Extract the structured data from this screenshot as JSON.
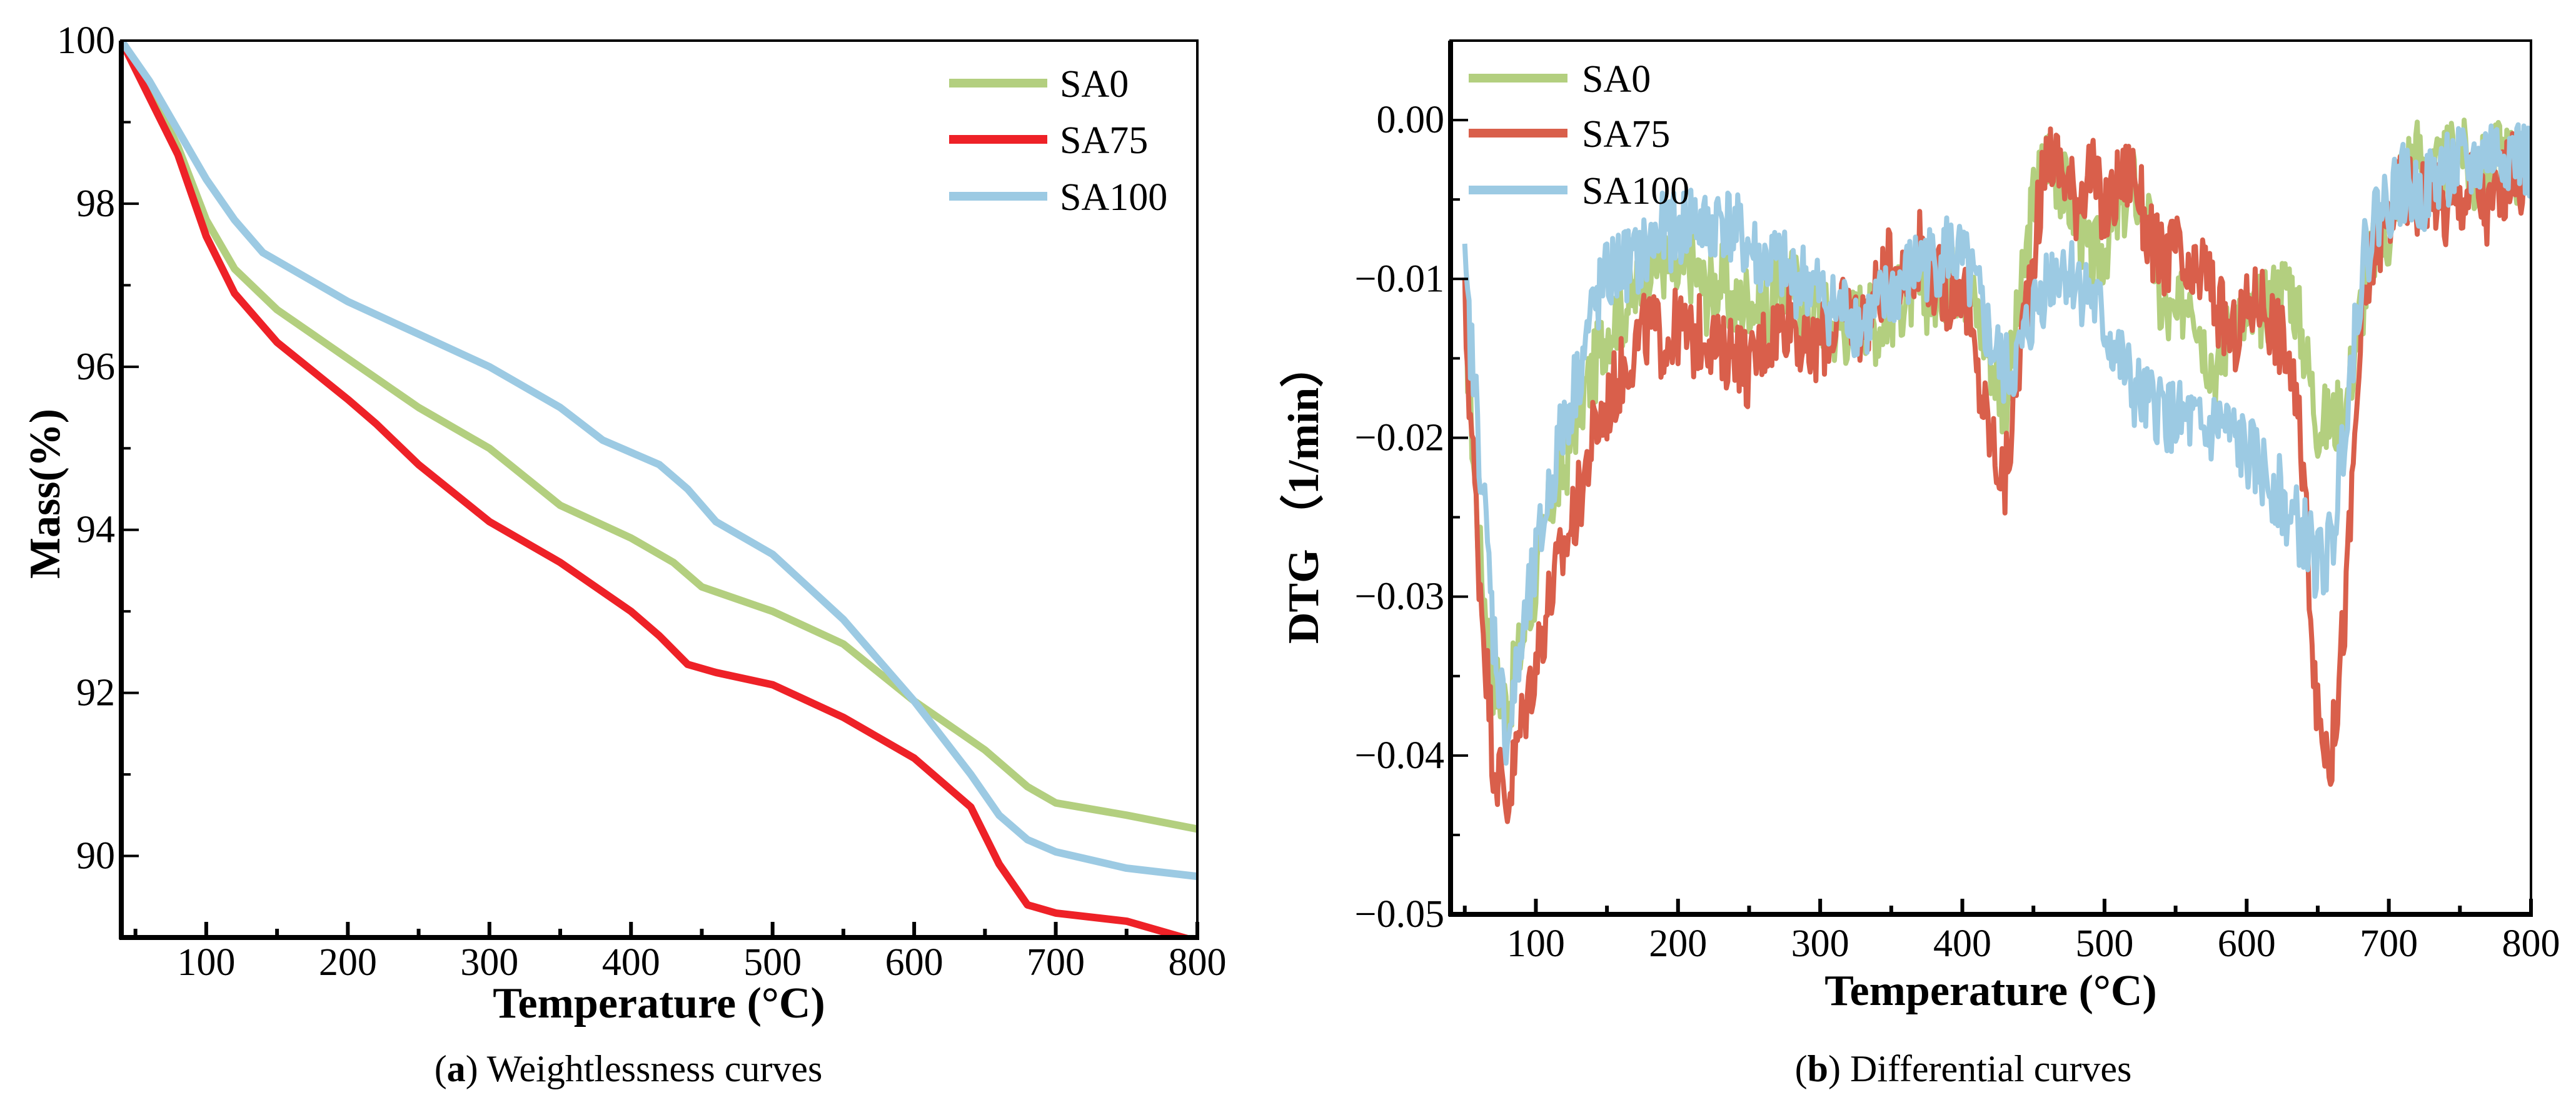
{
  "chart_data": [
    {
      "id": "a",
      "type": "line",
      "caption_letter": "a",
      "caption_text": " Weightlessness curves",
      "xlabel": "Temperature (°C)",
      "ylabel": "Mass(%)",
      "xlim": [
        40,
        800
      ],
      "ylim": [
        89,
        100
      ],
      "xticks": [
        100,
        200,
        300,
        400,
        500,
        600,
        700,
        800
      ],
      "xtick_labels": [
        "100",
        "200",
        "300",
        "400",
        "500",
        "600",
        "700",
        "800"
      ],
      "xminor": [
        50,
        150,
        250,
        350,
        450,
        550,
        650,
        750
      ],
      "yticks": [
        90,
        92,
        94,
        96,
        98,
        100
      ],
      "ytick_labels": [
        "90",
        "92",
        "94",
        "96",
        "98",
        "100"
      ],
      "yminor": [
        91,
        93,
        95,
        97,
        99
      ],
      "grid": false,
      "legend_position": "top-right",
      "series": [
        {
          "name": "SA0",
          "color": "#b3cf7f",
          "x": [
            40,
            60,
            80,
            100,
            120,
            150,
            200,
            250,
            300,
            350,
            400,
            430,
            450,
            500,
            550,
            600,
            650,
            680,
            700,
            750,
            800
          ],
          "y": [
            100,
            99.4,
            98.7,
            97.8,
            97.2,
            96.7,
            96.1,
            95.5,
            95.0,
            94.3,
            93.9,
            93.6,
            93.3,
            93.0,
            92.6,
            91.9,
            91.3,
            90.85,
            90.65,
            90.5,
            90.33
          ]
        },
        {
          "name": "SA75",
          "color": "#ee2127",
          "x": [
            40,
            60,
            80,
            100,
            120,
            150,
            200,
            220,
            250,
            300,
            350,
            400,
            420,
            440,
            460,
            500,
            550,
            600,
            640,
            660,
            680,
            700,
            750,
            800
          ],
          "y": [
            100,
            99.3,
            98.6,
            97.6,
            96.9,
            96.3,
            95.6,
            95.3,
            94.8,
            94.1,
            93.6,
            93.0,
            92.7,
            92.35,
            92.25,
            92.1,
            91.7,
            91.2,
            90.6,
            89.9,
            89.4,
            89.3,
            89.2,
            88.95
          ]
        },
        {
          "name": "SA100",
          "color": "#9ccae3",
          "x": [
            40,
            60,
            80,
            100,
            120,
            140,
            200,
            250,
            300,
            350,
            380,
            420,
            440,
            460,
            500,
            550,
            600,
            640,
            660,
            680,
            700,
            750,
            800
          ],
          "y": [
            100,
            99.5,
            98.9,
            98.3,
            97.8,
            97.4,
            96.8,
            96.4,
            96.0,
            95.5,
            95.1,
            94.8,
            94.5,
            94.1,
            93.7,
            92.9,
            91.9,
            91.0,
            90.5,
            90.2,
            90.05,
            89.85,
            89.75
          ]
        }
      ]
    },
    {
      "id": "b",
      "type": "line",
      "caption_letter": "b",
      "caption_text": " Differential curves",
      "xlabel": "Temperature (°C)",
      "ylabel": "DTG （1/min）",
      "xlim": [
        40,
        800
      ],
      "ylim": [
        -0.05,
        0.005
      ],
      "xticks": [
        100,
        200,
        300,
        400,
        500,
        600,
        700,
        800
      ],
      "xtick_labels": [
        "100",
        "200",
        "300",
        "400",
        "500",
        "600",
        "700",
        "800"
      ],
      "xminor": [
        50,
        150,
        250,
        350,
        450,
        550,
        650,
        750
      ],
      "yticks": [
        0,
        -0.01,
        -0.02,
        -0.03,
        -0.04,
        -0.05
      ],
      "ytick_labels": [
        "0.00",
        "−0.01",
        "−0.02",
        "−0.03",
        "−0.04",
        "−0.05"
      ],
      "yminor": [
        -0.005,
        -0.015,
        -0.025,
        -0.035,
        -0.045
      ],
      "grid": false,
      "legend_position": "top-left",
      "noise_amplitude": 0.0025,
      "x": [
        50,
        60,
        70,
        80,
        90,
        100,
        110,
        120,
        130,
        140,
        150,
        160,
        170,
        180,
        190,
        200,
        210,
        220,
        230,
        240,
        250,
        260,
        270,
        280,
        290,
        300,
        310,
        320,
        330,
        340,
        350,
        360,
        370,
        380,
        390,
        400,
        410,
        420,
        430,
        440,
        450,
        460,
        470,
        480,
        490,
        500,
        510,
        520,
        530,
        540,
        550,
        560,
        570,
        580,
        590,
        600,
        610,
        620,
        630,
        640,
        650,
        660,
        670,
        680,
        690,
        700,
        710,
        720,
        730,
        740,
        750,
        760,
        770,
        780,
        790,
        800
      ],
      "series": [
        {
          "name": "SA0",
          "color": "#b3cf7f",
          "y": [
            -0.012,
            -0.027,
            -0.035,
            -0.037,
            -0.033,
            -0.029,
            -0.024,
            -0.022,
            -0.018,
            -0.016,
            -0.013,
            -0.012,
            -0.011,
            -0.009,
            -0.009,
            -0.01,
            -0.009,
            -0.011,
            -0.01,
            -0.012,
            -0.011,
            -0.012,
            -0.011,
            -0.01,
            -0.012,
            -0.012,
            -0.013,
            -0.013,
            -0.012,
            -0.013,
            -0.012,
            -0.011,
            -0.011,
            -0.011,
            -0.01,
            -0.01,
            -0.012,
            -0.015,
            -0.018,
            -0.012,
            -0.005,
            -0.002,
            -0.004,
            -0.006,
            -0.009,
            -0.008,
            -0.006,
            -0.004,
            -0.006,
            -0.012,
            -0.013,
            -0.01,
            -0.014,
            -0.016,
            -0.012,
            -0.013,
            -0.012,
            -0.011,
            -0.01,
            -0.014,
            -0.019,
            -0.019,
            -0.018,
            -0.012,
            -0.008,
            -0.007,
            -0.003,
            -0.002,
            -0.004,
            -0.003,
            -0.001,
            -0.004,
            -0.003,
            -0.002,
            -0.003,
            -0.003
          ]
        },
        {
          "name": "SA75",
          "color": "#d95f4b",
          "y": [
            -0.012,
            -0.028,
            -0.04,
            -0.043,
            -0.038,
            -0.034,
            -0.03,
            -0.027,
            -0.024,
            -0.02,
            -0.018,
            -0.016,
            -0.014,
            -0.013,
            -0.014,
            -0.013,
            -0.014,
            -0.013,
            -0.015,
            -0.014,
            -0.016,
            -0.014,
            -0.013,
            -0.012,
            -0.015,
            -0.014,
            -0.013,
            -0.012,
            -0.013,
            -0.011,
            -0.009,
            -0.01,
            -0.008,
            -0.01,
            -0.011,
            -0.01,
            -0.016,
            -0.02,
            -0.023,
            -0.015,
            -0.008,
            -0.002,
            -0.003,
            -0.005,
            -0.003,
            -0.006,
            -0.004,
            -0.003,
            -0.007,
            -0.009,
            -0.008,
            -0.011,
            -0.009,
            -0.012,
            -0.014,
            -0.012,
            -0.011,
            -0.013,
            -0.015,
            -0.022,
            -0.038,
            -0.04,
            -0.03,
            -0.014,
            -0.008,
            -0.006,
            -0.004,
            -0.005,
            -0.004,
            -0.006,
            -0.005,
            -0.004,
            -0.006,
            -0.004,
            -0.003,
            -0.005
          ]
        },
        {
          "name": "SA100",
          "color": "#9ccae3",
          "y": [
            -0.01,
            -0.02,
            -0.032,
            -0.039,
            -0.033,
            -0.028,
            -0.023,
            -0.019,
            -0.016,
            -0.012,
            -0.01,
            -0.009,
            -0.009,
            -0.008,
            -0.007,
            -0.007,
            -0.006,
            -0.007,
            -0.006,
            -0.007,
            -0.008,
            -0.009,
            -0.009,
            -0.01,
            -0.01,
            -0.011,
            -0.012,
            -0.012,
            -0.013,
            -0.012,
            -0.011,
            -0.01,
            -0.009,
            -0.009,
            -0.008,
            -0.009,
            -0.011,
            -0.014,
            -0.016,
            -0.015,
            -0.012,
            -0.01,
            -0.009,
            -0.01,
            -0.011,
            -0.013,
            -0.015,
            -0.017,
            -0.018,
            -0.018,
            -0.019,
            -0.019,
            -0.02,
            -0.019,
            -0.02,
            -0.021,
            -0.022,
            -0.023,
            -0.025,
            -0.026,
            -0.028,
            -0.027,
            -0.018,
            -0.01,
            -0.006,
            -0.005,
            -0.004,
            -0.005,
            -0.004,
            -0.003,
            -0.003,
            -0.003,
            -0.002,
            -0.002,
            -0.002,
            -0.003
          ]
        }
      ]
    }
  ]
}
